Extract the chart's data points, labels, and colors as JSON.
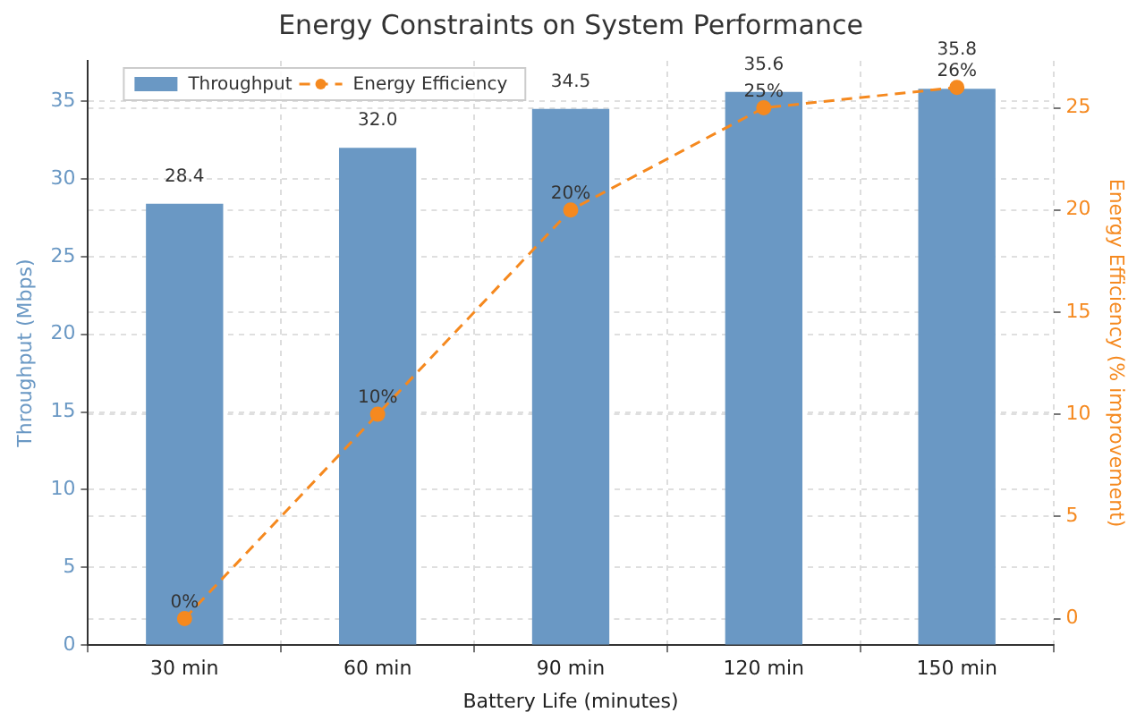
{
  "chart_data": {
    "type": "bar",
    "title": "Energy Constraints on System Performance",
    "xlabel": "Battery Life (minutes)",
    "ylabel": "Throughput (Mbps)",
    "y2label": "Energy Efficiency (% improvement)",
    "categories": [
      "30 min",
      "60 min",
      "90 min",
      "120 min",
      "150 min"
    ],
    "series": [
      {
        "name": "Throughput",
        "color": "#6a98c4",
        "values": [
          28.4,
          32.0,
          34.5,
          35.6,
          35.8
        ],
        "value_labels": [
          "28.4",
          "32.0",
          "34.5",
          "35.6",
          "35.8"
        ]
      },
      {
        "name": "Energy Efficiency",
        "type": "line",
        "axis": "y2",
        "color": "#f5891f",
        "values": [
          0,
          10,
          20,
          25,
          26
        ],
        "value_labels": [
          "0%",
          "10%",
          "20%",
          "25%",
          "26%"
        ],
        "marker": "circle",
        "line_style": "dashed"
      }
    ],
    "ylim": [
      0,
      37.6
    ],
    "yticks": [
      0,
      5,
      10,
      15,
      20,
      25,
      30,
      35
    ],
    "y2lim": [
      -1.3,
      27.3
    ],
    "y2ticks": [
      0,
      5,
      10,
      15,
      20,
      25
    ],
    "grid": true,
    "legend": "top left"
  }
}
